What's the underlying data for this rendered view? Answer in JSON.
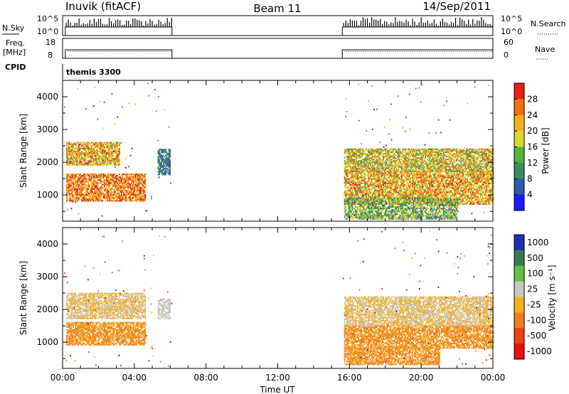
{
  "header": {
    "station": "Inuvik (fitACF)",
    "beam": "Beam 11",
    "date": "14/Sep/2011"
  },
  "top_panels": {
    "nsky_label": "N.Sky",
    "nsky_ticks": [
      "10^5",
      "10^0"
    ],
    "nsearch_label": "N.Search",
    "freq_label": "Freq.",
    "freq_unit": "[MHz]",
    "freq_ticks": [
      "18",
      "8"
    ],
    "nave_label": "Nave",
    "nave_ticks": [
      "60",
      "0"
    ],
    "cpid_label": "CPID",
    "cpid_value": "themis 3300"
  },
  "x_axis": {
    "label": "Time UT",
    "ticks": [
      "00:00",
      "04:00",
      "08:00",
      "12:00",
      "16:00",
      "20:00",
      "00:00"
    ]
  },
  "y_axis": {
    "label": "Slant Range [km]",
    "ticks": [
      "1000",
      "2000",
      "3000",
      "4000"
    ]
  },
  "power_scale": {
    "label": "Power [dB]",
    "ticks": [
      "4",
      "8",
      "12",
      "16",
      "20",
      "24",
      "28"
    ],
    "colors": [
      "#1a1aff",
      "#2a5aa8",
      "#3a8a60",
      "#55b040",
      "#d8d830",
      "#f5b020",
      "#f07010",
      "#e82010"
    ]
  },
  "velocity_scale": {
    "label": "Velocity [m s⁻¹]",
    "ticks": [
      "1000",
      "500",
      "100",
      "25",
      "-25",
      "-100",
      "-500",
      "-1000"
    ],
    "colors": [
      "#2030b0",
      "#3a7a50",
      "#60c040",
      "#c8c8c0",
      "#f5b020",
      "#f08020",
      "#f04010",
      "#e81010"
    ]
  },
  "chart_data": [
    {
      "type": "heatmap",
      "name": "power",
      "x_unit": "hours UT",
      "xlim": [
        0,
        24
      ],
      "ylim": [
        200,
        4500
      ],
      "ylabel": "Slant Range [km]",
      "xlabel": "Time UT",
      "colorbar": {
        "label": "Power [dB]",
        "range": [
          0,
          32
        ]
      },
      "data_gaps": [
        [
          6.1,
          15.6
        ]
      ],
      "bands": [
        {
          "t": [
            0.2,
            4.6
          ],
          "r": [
            800,
            1650
          ],
          "value_range": [
            18,
            32
          ]
        },
        {
          "t": [
            0.2,
            3.2
          ],
          "r": [
            1900,
            2600
          ],
          "value_range": [
            14,
            30
          ]
        },
        {
          "t": [
            5.3,
            6.0
          ],
          "r": [
            1600,
            2400
          ],
          "value_range": [
            4,
            12
          ]
        },
        {
          "t": [
            15.7,
            24.0
          ],
          "r": [
            700,
            1700
          ],
          "value_range": [
            14,
            30
          ]
        },
        {
          "t": [
            15.7,
            24.0
          ],
          "r": [
            1700,
            2400
          ],
          "value_range": [
            10,
            28
          ]
        },
        {
          "t": [
            15.7,
            22.0
          ],
          "r": [
            250,
            900
          ],
          "value_range": [
            6,
            22
          ]
        }
      ]
    },
    {
      "type": "heatmap",
      "name": "velocity",
      "x_unit": "hours UT",
      "xlim": [
        0,
        24
      ],
      "ylim": [
        200,
        4500
      ],
      "ylabel": "Slant Range [km]",
      "xlabel": "Time UT",
      "colorbar": {
        "label": "Velocity [m s⁻¹]",
        "range": [
          -1000,
          1000
        ]
      },
      "data_gaps": [
        [
          6.1,
          15.6
        ]
      ],
      "bands": [
        {
          "t": [
            0.2,
            4.6
          ],
          "r": [
            900,
            1600
          ],
          "value_range": [
            -500,
            -100
          ]
        },
        {
          "t": [
            0.2,
            4.6
          ],
          "r": [
            1700,
            2500
          ],
          "value_range": [
            -25,
            25
          ]
        },
        {
          "t": [
            5.3,
            6.0
          ],
          "r": [
            1700,
            2300
          ],
          "value_range": [
            25,
            100
          ]
        },
        {
          "t": [
            15.7,
            24.0
          ],
          "r": [
            800,
            1500
          ],
          "value_range": [
            -500,
            -100
          ]
        },
        {
          "t": [
            15.7,
            24.0
          ],
          "r": [
            1500,
            2400
          ],
          "value_range": [
            -25,
            25
          ]
        },
        {
          "t": [
            15.7,
            21.0
          ],
          "r": [
            300,
            800
          ],
          "value_range": [
            -500,
            -100
          ]
        }
      ]
    }
  ]
}
